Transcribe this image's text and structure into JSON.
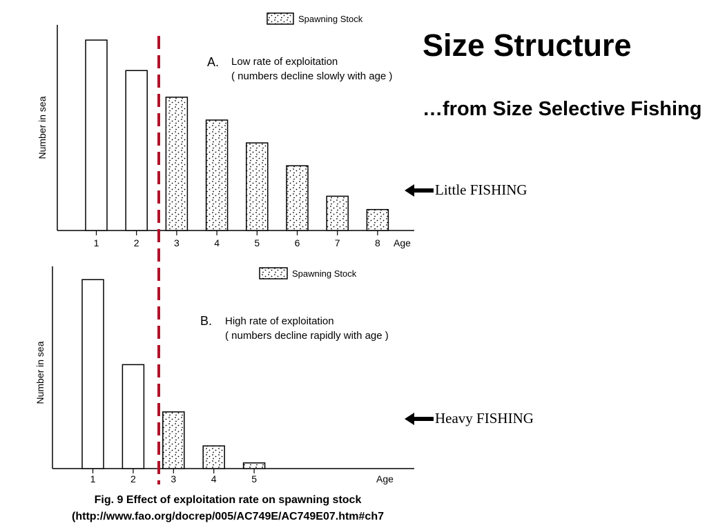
{
  "slide": {
    "title": "Size Structure",
    "subtitle": "…from Size Selective Fishing",
    "annotation_a": "Little FISHING",
    "annotation_b": "Heavy FISHING",
    "caption_line1": "Fig. 9 Effect of exploitation rate on spawning stock",
    "caption_line2": "(http://www.fao.org/docrep/005/AC749E/AC749E07.htm#ch7"
  },
  "chart_data": [
    {
      "type": "bar",
      "panel": "A.",
      "title": "Low rate of exploitation",
      "subtitle": "( numbers decline slowly with age )",
      "ylabel": "Number in sea",
      "xlabel": "Age",
      "categories": [
        "1",
        "2",
        "3",
        "4",
        "5",
        "6",
        "7",
        "8"
      ],
      "values": [
        100,
        84,
        70,
        58,
        46,
        34,
        18,
        11
      ],
      "spawning": [
        false,
        false,
        true,
        true,
        true,
        true,
        true,
        true
      ],
      "legend": "Spawning Stock",
      "legend_position": "top-right",
      "ylim": [
        0,
        108
      ],
      "selectivity_cutoff_between": [
        "2",
        "3"
      ]
    },
    {
      "type": "bar",
      "panel": "B.",
      "title": "High rate of exploitation",
      "subtitle": "( numbers decline rapidly with age )",
      "ylabel": "Number in sea",
      "xlabel": "Age",
      "categories": [
        "1",
        "2",
        "3",
        "4",
        "5"
      ],
      "values": [
        100,
        55,
        30,
        12,
        3
      ],
      "spawning": [
        false,
        false,
        true,
        true,
        true
      ],
      "legend": "Spawning Stock",
      "legend_position": "top-right",
      "ylim": [
        0,
        107
      ],
      "selectivity_cutoff_between": [
        "2",
        "3"
      ]
    }
  ],
  "colors": {
    "cutoff_line": "#b0132a",
    "ink": "#000000"
  }
}
